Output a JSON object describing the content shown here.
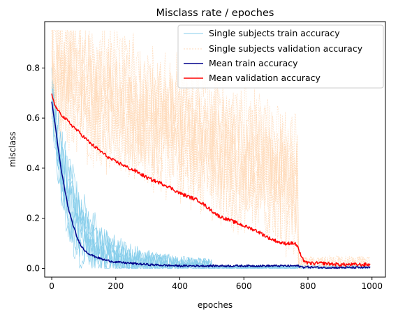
{
  "chart_data": {
    "type": "line",
    "title": "Misclass rate / epoches",
    "xlabel": "epoches",
    "ylabel": "misclass",
    "xlim": [
      -22,
      1042
    ],
    "ylim": [
      -0.035,
      0.985
    ],
    "xticks": [
      0,
      200,
      400,
      600,
      800,
      1000
    ],
    "yticks": [
      0.0,
      0.2,
      0.4,
      0.6,
      0.8
    ],
    "xtick_labels": [
      "0",
      "200",
      "400",
      "600",
      "800",
      "1000"
    ],
    "ytick_labels": [
      "0.0",
      "0.2",
      "0.4",
      "0.6",
      "0.8"
    ],
    "legend_placement": "top-right",
    "legend": [
      "Single subjects train accuracy",
      "Single subjects validation accuracy",
      "Mean train accuracy",
      "Mean validation accuracy"
    ],
    "colors": {
      "single_train": "#87ceeb",
      "single_valid": "#ffdab9",
      "mean_train": "#00008b",
      "mean_valid": "#ff0000"
    },
    "series": [
      {
        "name": "Mean train accuracy",
        "style": "solid",
        "x": [
          0,
          10,
          20,
          30,
          40,
          50,
          60,
          70,
          80,
          90,
          100,
          120,
          140,
          160,
          180,
          200,
          250,
          300,
          350,
          400,
          450,
          500,
          550,
          600,
          650,
          700,
          750,
          770,
          780,
          800,
          850,
          900,
          950,
          995
        ],
        "y": [
          0.665,
          0.58,
          0.48,
          0.39,
          0.32,
          0.25,
          0.2,
          0.16,
          0.12,
          0.095,
          0.075,
          0.055,
          0.045,
          0.035,
          0.03,
          0.025,
          0.02,
          0.015,
          0.012,
          0.01,
          0.01,
          0.01,
          0.01,
          0.01,
          0.01,
          0.01,
          0.01,
          0.01,
          0.005,
          0.005,
          0.003,
          0.003,
          0.003,
          0.003
        ]
      },
      {
        "name": "Mean validation accuracy",
        "style": "solid",
        "x": [
          0,
          10,
          20,
          40,
          60,
          80,
          100,
          120,
          140,
          160,
          180,
          200,
          220,
          240,
          260,
          280,
          300,
          320,
          340,
          360,
          380,
          400,
          420,
          440,
          460,
          480,
          500,
          520,
          540,
          560,
          580,
          600,
          620,
          640,
          660,
          680,
          700,
          720,
          740,
          760,
          770,
          780,
          800,
          850,
          900,
          950,
          995
        ],
        "y": [
          0.695,
          0.65,
          0.63,
          0.6,
          0.575,
          0.55,
          0.525,
          0.5,
          0.48,
          0.46,
          0.44,
          0.425,
          0.415,
          0.4,
          0.39,
          0.375,
          0.36,
          0.35,
          0.34,
          0.33,
          0.315,
          0.3,
          0.29,
          0.28,
          0.27,
          0.25,
          0.23,
          0.21,
          0.2,
          0.19,
          0.18,
          0.17,
          0.16,
          0.15,
          0.135,
          0.12,
          0.11,
          0.1,
          0.1,
          0.1,
          0.08,
          0.04,
          0.02,
          0.02,
          0.015,
          0.015,
          0.015
        ]
      }
    ]
  }
}
